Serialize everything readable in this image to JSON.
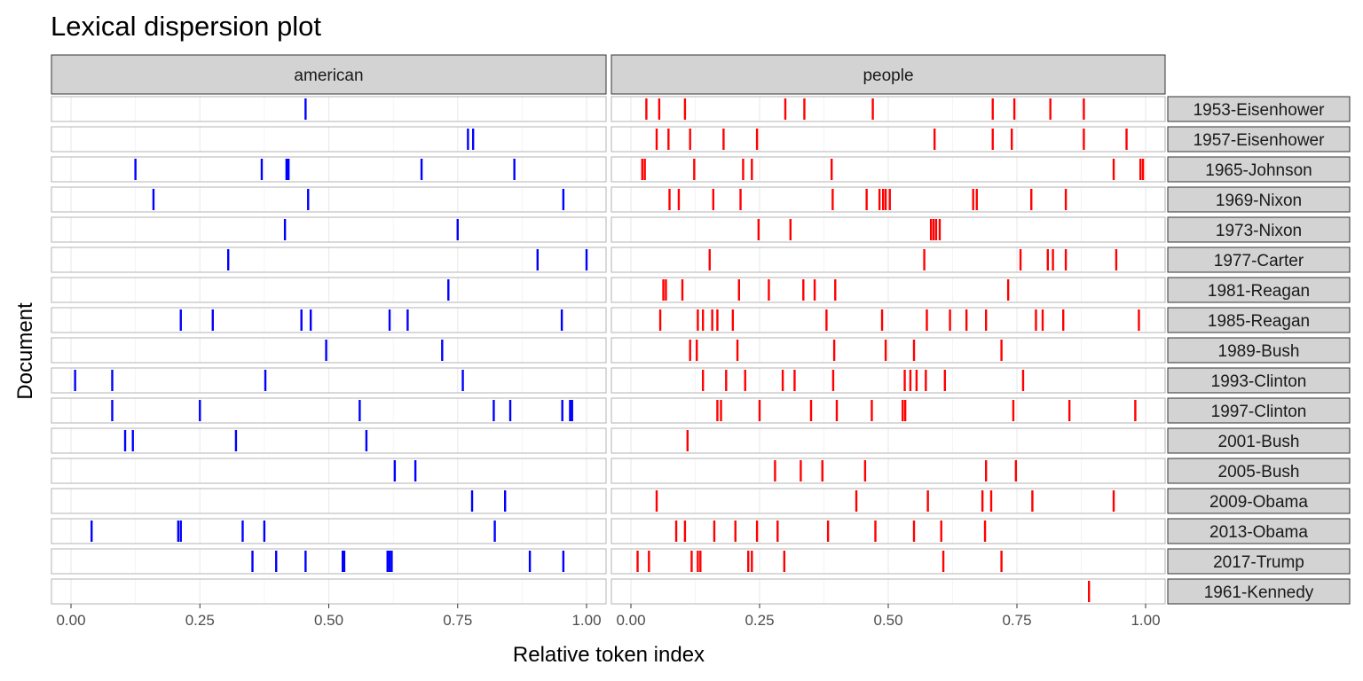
{
  "chart_data": {
    "type": "scatter",
    "title": "Lexical dispersion plot",
    "xlabel": "Relative token index",
    "ylabel": "Document",
    "xlim": [
      0,
      1
    ],
    "x_ticks": [
      "0.00",
      "0.25",
      "0.50",
      "0.75",
      "1.00"
    ],
    "x_tick_values": [
      0,
      0.25,
      0.5,
      0.75,
      1
    ],
    "grid": true,
    "facets": [
      "american",
      "people"
    ],
    "documents": [
      "1953-Eisenhower",
      "1957-Eisenhower",
      "1965-Johnson",
      "1969-Nixon",
      "1973-Nixon",
      "1977-Carter",
      "1981-Reagan",
      "1985-Reagan",
      "1989-Bush",
      "1993-Clinton",
      "1997-Clinton",
      "2001-Bush",
      "2005-Bush",
      "2009-Obama",
      "2013-Obama",
      "2017-Trump",
      "1961-Kennedy"
    ],
    "series": [
      {
        "facet": "american",
        "color": "#0000ff",
        "positions": [
          [
            0.455
          ],
          [
            0.77,
            0.78
          ],
          [
            0.125,
            0.37,
            0.418,
            0.422,
            0.68,
            0.86
          ],
          [
            0.16,
            0.46,
            0.955
          ],
          [
            0.415,
            0.75
          ],
          [
            0.305,
            0.905,
            1.0
          ],
          [
            0.732
          ],
          [
            0.213,
            0.275,
            0.447,
            0.465,
            0.618,
            0.653,
            0.952
          ],
          [
            0.495,
            0.72
          ],
          [
            0.008,
            0.08,
            0.377,
            0.76
          ],
          [
            0.08,
            0.25,
            0.56,
            0.82,
            0.852,
            0.953,
            0.968,
            0.972
          ],
          [
            0.105,
            0.12,
            0.32,
            0.573
          ],
          [
            0.628,
            0.668
          ],
          [
            0.778,
            0.842
          ],
          [
            0.04,
            0.208,
            0.213,
            0.333,
            0.375,
            0.822
          ],
          [
            0.352,
            0.398,
            0.455,
            0.527,
            0.53,
            0.614,
            0.618,
            0.622,
            0.89,
            0.955
          ],
          []
        ]
      },
      {
        "facet": "people",
        "color": "#ff0000",
        "positions": [
          [
            0.03,
            0.055,
            0.105,
            0.3,
            0.337,
            0.47,
            0.703,
            0.745,
            0.815,
            0.88
          ],
          [
            0.05,
            0.073,
            0.115,
            0.18,
            0.245,
            0.59,
            0.703,
            0.74,
            0.88,
            0.963
          ],
          [
            0.022,
            0.027,
            0.123,
            0.218,
            0.235,
            0.39,
            0.938,
            0.99,
            0.995
          ],
          [
            0.075,
            0.093,
            0.16,
            0.213,
            0.392,
            0.458,
            0.483,
            0.49,
            0.495,
            0.503,
            0.665,
            0.672,
            0.778,
            0.845
          ],
          [
            0.248,
            0.31,
            0.583,
            0.588,
            0.593,
            0.6
          ],
          [
            0.153,
            0.57,
            0.757,
            0.81,
            0.82,
            0.845,
            0.943
          ],
          [
            0.063,
            0.068,
            0.1,
            0.21,
            0.268,
            0.335,
            0.357,
            0.397,
            0.733
          ],
          [
            0.057,
            0.13,
            0.14,
            0.158,
            0.168,
            0.198,
            0.38,
            0.488,
            0.575,
            0.62,
            0.652,
            0.69,
            0.787,
            0.8,
            0.84,
            0.987
          ],
          [
            0.115,
            0.128,
            0.207,
            0.395,
            0.495,
            0.55,
            0.72
          ],
          [
            0.14,
            0.185,
            0.222,
            0.295,
            0.318,
            0.393,
            0.532,
            0.543,
            0.555,
            0.573,
            0.61,
            0.762
          ],
          [
            0.168,
            0.175,
            0.25,
            0.35,
            0.4,
            0.468,
            0.528,
            0.533,
            0.743,
            0.852,
            0.98
          ],
          [
            0.11
          ],
          [
            0.28,
            0.33,
            0.372,
            0.455,
            0.69,
            0.748
          ],
          [
            0.05,
            0.438,
            0.577,
            0.683,
            0.7,
            0.78,
            0.938
          ],
          [
            0.088,
            0.105,
            0.162,
            0.203,
            0.245,
            0.285,
            0.383,
            0.475,
            0.55,
            0.603,
            0.688
          ],
          [
            0.013,
            0.035,
            0.118,
            0.13,
            0.135,
            0.228,
            0.235,
            0.298,
            0.607,
            0.72
          ],
          [
            0.89
          ]
        ]
      }
    ]
  }
}
